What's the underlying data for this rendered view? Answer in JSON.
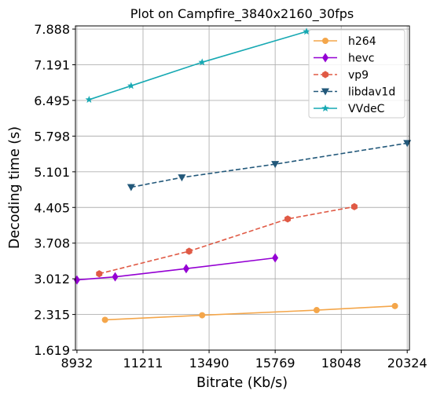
{
  "chart_data": {
    "type": "line",
    "title": "Plot on Campfire_3840x2160_30fps",
    "xlabel": "Bitrate (Kb/s)",
    "ylabel": "Decoding time (s)",
    "xlim": [
      8880,
      20400
    ],
    "ylim": [
      1.619,
      7.95
    ],
    "xticks": [
      8932,
      11211,
      13490,
      15769,
      18048,
      20324
    ],
    "xtick_labels": [
      "8932",
      "11211",
      "13490",
      "15769",
      "18048",
      "20324"
    ],
    "yticks": [
      1.619,
      2.315,
      3.012,
      3.708,
      4.405,
      5.101,
      5.798,
      6.495,
      7.191,
      7.888
    ],
    "ytick_labels": [
      "1.619",
      "2.315",
      "3.012",
      "3.708",
      "4.405",
      "5.101",
      "5.798",
      "6.495",
      "7.191",
      "7.888"
    ],
    "grid": true,
    "legend_position": "top-right",
    "series": [
      {
        "name": "h264",
        "color": "#f4a64a",
        "marker": "circle",
        "dash": "solid",
        "x": [
          9900,
          13250,
          17200,
          19900
        ],
        "y": [
          2.21,
          2.3,
          2.4,
          2.48
        ]
      },
      {
        "name": "hevc",
        "color": "#9400d3",
        "marker": "diamond",
        "dash": "solid",
        "x": [
          8932,
          10250,
          12700,
          15769
        ],
        "y": [
          2.99,
          3.05,
          3.21,
          3.42
        ]
      },
      {
        "name": "vp9",
        "color": "#e05a45",
        "marker": "hexagon",
        "dash": "dashed",
        "x": [
          9700,
          12800,
          16200,
          18500
        ],
        "y": [
          3.11,
          3.55,
          4.18,
          4.42
        ]
      },
      {
        "name": "libdav1d",
        "color": "#22587a",
        "marker": "triangle-down",
        "dash": "dashed",
        "x": [
          10800,
          12550,
          15769,
          20324
        ],
        "y": [
          4.8,
          4.99,
          5.25,
          5.66
        ]
      },
      {
        "name": "VVdeC",
        "color": "#17a9b3",
        "marker": "star",
        "dash": "solid",
        "x": [
          9350,
          10800,
          13250,
          16850
        ],
        "y": [
          6.51,
          6.78,
          7.24,
          7.84
        ]
      }
    ]
  }
}
